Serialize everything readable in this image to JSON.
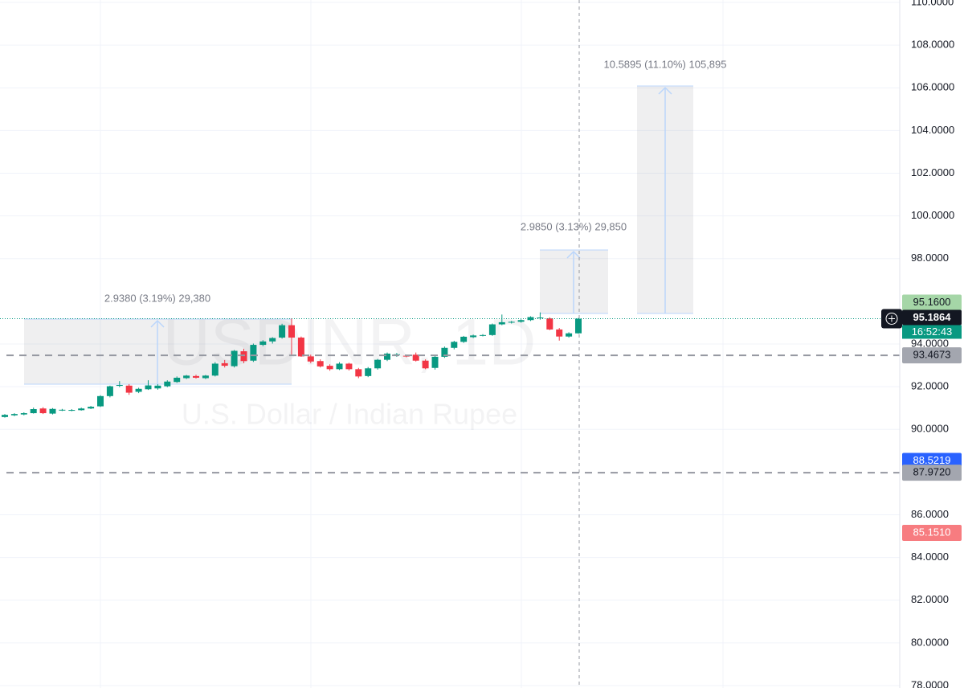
{
  "chart_data": {
    "type": "candlestick",
    "title": "USDINR, 1D",
    "subtitle": "U.S. Dollar / Indian Rupee",
    "up_color": "#089981",
    "down_color": "#f23645",
    "grid": true,
    "ylim": [
      78,
      110
    ],
    "yticks": [
      {
        "value": 78,
        "label": "78.0000"
      },
      {
        "value": 80,
        "label": "80.0000"
      },
      {
        "value": 82,
        "label": "82.0000"
      },
      {
        "value": 84,
        "label": "84.0000"
      },
      {
        "value": 86,
        "label": "86.0000"
      },
      {
        "value": 90,
        "label": "90.0000"
      },
      {
        "value": 92,
        "label": "92.0000"
      },
      {
        "value": 94,
        "label": "94.0000"
      },
      {
        "value": 98,
        "label": "98.0000"
      },
      {
        "value": 100,
        "label": "100.0000"
      },
      {
        "value": 102,
        "label": "102.0000"
      },
      {
        "value": 104,
        "label": "104.0000"
      },
      {
        "value": 106,
        "label": "106.0000"
      },
      {
        "value": 108,
        "label": "108.0000"
      },
      {
        "value": 110,
        "label": "110.0000"
      }
    ],
    "open": [
      90.58,
      90.66,
      90.7,
      90.76,
      90.98,
      90.74,
      90.9,
      90.9,
      90.9,
      90.98,
      91.08,
      91.56,
      92.04,
      92.05,
      91.76,
      91.88,
      91.92,
      92.02,
      92.22,
      92.4,
      92.5,
      92.4,
      92.52,
      93.1,
      92.96,
      93.66,
      93.22,
      93.96,
      94.12,
      94.3,
      94.88,
      94.3,
      93.42,
      93.2,
      92.98,
      92.82,
      93.08,
      92.82,
      92.5,
      92.86,
      93.26,
      93.48,
      93.45,
      93.5,
      93.22,
      92.88,
      93.4,
      93.82,
      94.1,
      94.32,
      94.4,
      94.42,
      94.92,
      95.0,
      95.04,
      95.12,
      95.22,
      95.2,
      94.68,
      94.35,
      94.5
    ],
    "high": [
      90.72,
      90.76,
      90.8,
      91.02,
      91.04,
      91.0,
      90.96,
      90.95,
      91.02,
      91.1,
      91.6,
      92.05,
      92.26,
      92.12,
      91.95,
      92.3,
      92.12,
      92.3,
      92.48,
      92.55,
      92.56,
      92.55,
      93.15,
      93.25,
      93.72,
      93.78,
      94.02,
      94.18,
      94.32,
      94.95,
      95.2,
      94.35,
      93.5,
      93.28,
      93.05,
      93.15,
      93.12,
      92.88,
      92.92,
      93.3,
      93.6,
      93.58,
      93.5,
      93.6,
      93.28,
      93.45,
      93.88,
      94.15,
      94.38,
      94.44,
      94.46,
      94.96,
      95.38,
      95.08,
      95.16,
      95.3,
      95.48,
      95.25,
      94.75,
      94.55,
      95.22
    ],
    "low": [
      90.55,
      90.62,
      90.66,
      90.74,
      90.72,
      90.7,
      90.86,
      90.85,
      90.88,
      90.95,
      91.05,
      91.5,
      91.98,
      91.62,
      91.7,
      91.85,
      91.86,
      91.98,
      92.18,
      92.36,
      92.38,
      92.36,
      92.48,
      92.9,
      92.9,
      93.1,
      93.16,
      93.9,
      94.02,
      94.25,
      93.5,
      93.4,
      93.1,
      92.9,
      92.75,
      92.78,
      92.76,
      92.4,
      92.45,
      92.8,
      93.2,
      93.4,
      93.38,
      93.18,
      92.82,
      92.8,
      93.35,
      93.75,
      94.05,
      94.28,
      94.36,
      94.38,
      94.88,
      94.96,
      95.0,
      95.08,
      95.14,
      94.65,
      94.16,
      94.3,
      94.48
    ],
    "close": [
      90.68,
      90.72,
      90.76,
      90.95,
      90.76,
      90.96,
      90.92,
      90.91,
      90.98,
      91.06,
      91.56,
      92.02,
      92.08,
      91.72,
      91.9,
      92.06,
      92.05,
      92.24,
      92.42,
      92.52,
      92.42,
      92.52,
      93.08,
      92.98,
      93.68,
      93.2,
      93.96,
      94.12,
      94.28,
      94.88,
      94.3,
      93.42,
      93.18,
      92.95,
      92.82,
      93.08,
      92.82,
      92.48,
      92.86,
      93.26,
      93.55,
      93.52,
      93.42,
      93.22,
      92.86,
      93.4,
      93.82,
      94.1,
      94.34,
      94.4,
      94.42,
      94.92,
      95.02,
      95.04,
      95.12,
      95.26,
      95.24,
      94.68,
      94.35,
      94.5,
      95.1864
    ],
    "countdown": "16:52:43",
    "price_lines": [
      {
        "value": 95.16,
        "label": "95.1600",
        "color": "#a5d6a7",
        "text_color": "#131722",
        "dashed": false
      },
      {
        "value": 93.4673,
        "label": "93.4673",
        "color": "#a3a6af",
        "text_color": "#131722",
        "dashed": true
      },
      {
        "value": 88.5219,
        "label": "88.5219",
        "color": "#2962ff",
        "text_color": "#ffffff",
        "dashed": false
      },
      {
        "value": 87.972,
        "label": "87.9720",
        "color": "#a3a6af",
        "text_color": "#131722",
        "dashed": true
      },
      {
        "value": 85.151,
        "label": "85.1510",
        "color": "#f77c80",
        "text_color": "#ffffff",
        "dashed": false
      }
    ],
    "annotations": [
      "2.9380 (3.19%) 29,380",
      "2.9850 (3.13%) 29,850",
      "10.5895 (11.10%) 105,895"
    ]
  }
}
